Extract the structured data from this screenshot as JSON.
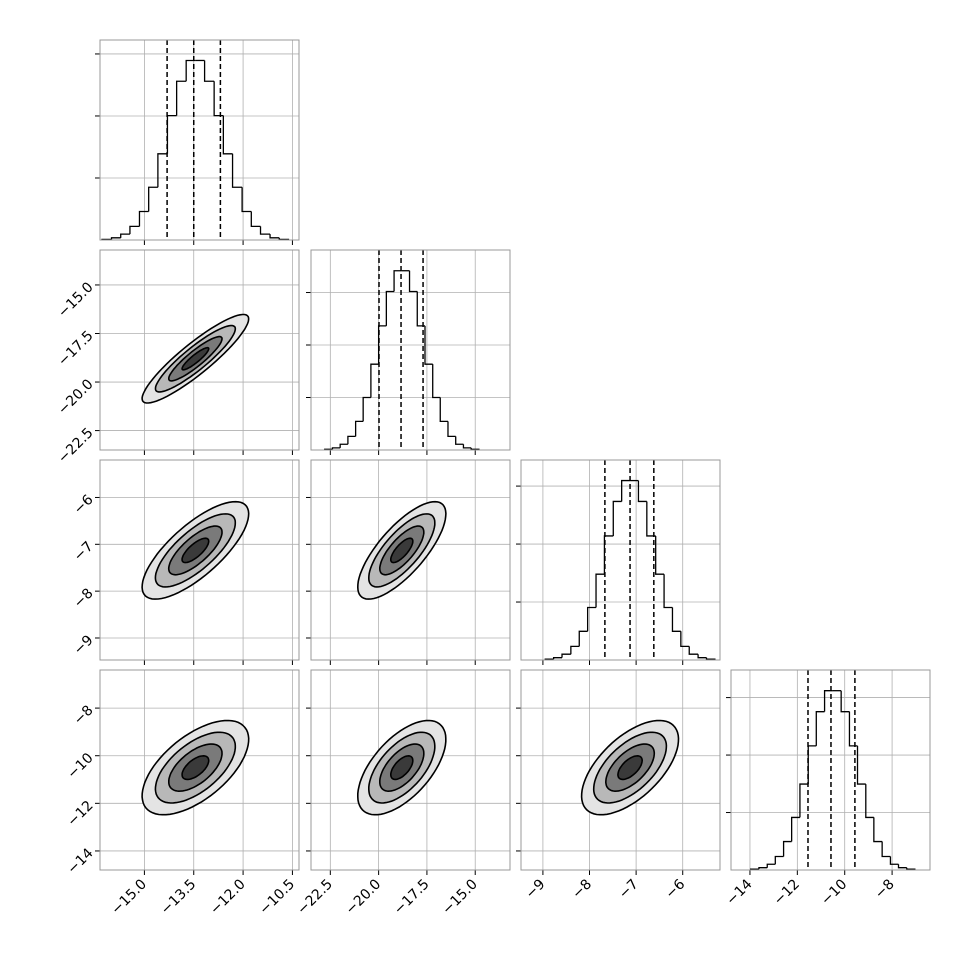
{
  "chart_data": {
    "type": "corner",
    "levels": [
      0.5,
      1,
      1.5,
      2
    ],
    "parameters": [
      {
        "xlim": [
          -16.35,
          -10.3
        ],
        "xticks": [
          {
            "value": -15,
            "label": "−15.0"
          },
          {
            "value": -13.5,
            "label": "−13.5"
          },
          {
            "value": -12,
            "label": "−12.0"
          },
          {
            "value": -10.5,
            "label": "−10.5"
          }
        ],
        "mu": -13.45,
        "sigma": 0.81,
        "quantiles": [
          -14.31,
          -13.5,
          -12.69
        ],
        "bins": [
          -16.29,
          -16.0,
          -15.72,
          -15.44,
          -15.15,
          -14.87,
          -14.59,
          -14.3,
          -14.02,
          -13.73,
          -13.45,
          -13.17,
          -12.88,
          -12.6,
          -12.32,
          -12.03,
          -11.75,
          -11.47,
          -11.18,
          -10.9,
          -10.62
        ],
        "counts": [
          2,
          7,
          19,
          44,
          92,
          170,
          278,
          401,
          512,
          579,
          579,
          512,
          401,
          278,
          170,
          92,
          44,
          19,
          7,
          2
        ],
        "hist_ylim": [
          0,
          645
        ],
        "hist_yticks": [
          200,
          400,
          600
        ]
      },
      {
        "xlim": [
          -23.5,
          -13.2
        ],
        "xticks": [
          {
            "value": -22.5,
            "label": "−22.5"
          },
          {
            "value": -20,
            "label": "−20.0"
          },
          {
            "value": -17.5,
            "label": "−17.5"
          },
          {
            "value": -15,
            "label": "−15.0"
          }
        ],
        "mu": -18.8,
        "sigma": 1.14,
        "quantiles": [
          -19.98,
          -18.84,
          -17.7
        ],
        "bins": [
          -22.79,
          -22.39,
          -21.99,
          -21.59,
          -21.19,
          -20.8,
          -20.4,
          -20.0,
          -19.6,
          -19.2,
          -18.8,
          -18.4,
          -18.0,
          -17.6,
          -17.2,
          -16.81,
          -16.41,
          -16.01,
          -15.61,
          -15.21,
          -14.81
        ],
        "counts": [
          3,
          8,
          22,
          52,
          109,
          200,
          327,
          473,
          604,
          683,
          683,
          604,
          473,
          327,
          200,
          109,
          52,
          22,
          8,
          3
        ],
        "hist_ylim": [
          0,
          762
        ],
        "hist_yticks": [
          200,
          400,
          600
        ]
      },
      {
        "xlim": [
          -9.47,
          -5.2
        ],
        "xticks": [
          {
            "value": -9,
            "label": "−9"
          },
          {
            "value": -8,
            "label": "−8"
          },
          {
            "value": -7,
            "label": "−7"
          },
          {
            "value": -6,
            "label": "−6"
          }
        ],
        "mu": -7.13,
        "sigma": 0.52,
        "quantiles": [
          -7.67,
          -7.13,
          -6.62
        ],
        "bins": [
          -8.95,
          -8.77,
          -8.59,
          -8.4,
          -8.22,
          -8.04,
          -7.86,
          -7.68,
          -7.49,
          -7.31,
          -7.13,
          -6.95,
          -6.77,
          -6.58,
          -6.4,
          -6.22,
          -6.04,
          -5.86,
          -5.67,
          -5.49,
          -5.31
        ],
        "counts": [
          3,
          8,
          20,
          47,
          99,
          181,
          296,
          428,
          547,
          619,
          619,
          547,
          428,
          296,
          181,
          99,
          47,
          20,
          8,
          3
        ],
        "hist_ylim": [
          0,
          690
        ],
        "hist_yticks": [
          200,
          400,
          600
        ]
      },
      {
        "xlim": [
          -14.8,
          -6.4
        ],
        "xticks": [
          {
            "value": -14,
            "label": "−14"
          },
          {
            "value": -12,
            "label": "−12"
          },
          {
            "value": -10,
            "label": "−10"
          },
          {
            "value": -8,
            "label": "−8"
          }
        ],
        "mu": -10.5,
        "sigma": 0.99,
        "quantiles": [
          -11.55,
          -10.58,
          -9.57
        ],
        "bins": [
          -13.97,
          -13.62,
          -13.27,
          -12.93,
          -12.58,
          -12.24,
          -11.89,
          -11.54,
          -11.2,
          -10.85,
          -10.5,
          -10.15,
          -9.8,
          -9.46,
          -9.11,
          -8.77,
          -8.42,
          -8.07,
          -7.73,
          -7.38,
          -7.04
        ],
        "counts": [
          3,
          8,
          20,
          47,
          99,
          183,
          299,
          432,
          551,
          624,
          624,
          551,
          432,
          299,
          183,
          99,
          47,
          20,
          8,
          3
        ],
        "hist_ylim": [
          0,
          696
        ],
        "hist_yticks": [
          200,
          400,
          600
        ]
      }
    ],
    "pairs": [
      {
        "x": 0,
        "y": 1,
        "rho": 0.9
      },
      {
        "x": 0,
        "y": 2,
        "rho": 0.75
      },
      {
        "x": 1,
        "y": 2,
        "rho": 0.75
      },
      {
        "x": 0,
        "y": 3,
        "rho": 0.6
      },
      {
        "x": 1,
        "y": 3,
        "rho": 0.6
      },
      {
        "x": 2,
        "y": 3,
        "rho": 0.6
      }
    ]
  }
}
